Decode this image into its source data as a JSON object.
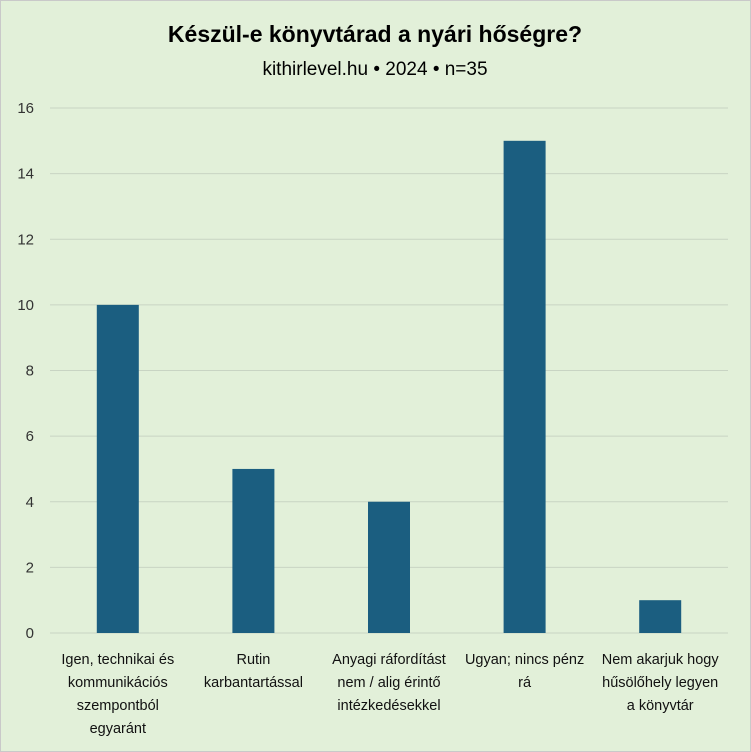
{
  "chart_data": {
    "type": "bar",
    "title": "Készül-e könyvtárad a nyári hőségre?",
    "subtitle": "kithirlevel.hu • 2024 • n=35",
    "categories": [
      [
        "Igen, technikai és",
        "kommunikációs",
        "szempontból",
        "egyaránt"
      ],
      [
        "Rutin",
        "karbantartással"
      ],
      [
        "Anyagi ráfordítást",
        "nem / alig érintő",
        "intézkedésekkel"
      ],
      [
        "Ugyan; nincs pénz",
        "rá"
      ],
      [
        "Nem akarjuk hogy",
        "hűsölőhely legyen",
        "a könyvtár"
      ]
    ],
    "values": [
      10,
      5,
      4,
      15,
      1
    ],
    "ylim": [
      0,
      16
    ],
    "yticks": [
      0,
      2,
      4,
      6,
      8,
      10,
      12,
      14,
      16
    ],
    "grid": true,
    "legend": "none",
    "bar_color": "#1b5e80",
    "grid_color": "#c8d4c3",
    "background": "#e2f0d9"
  }
}
